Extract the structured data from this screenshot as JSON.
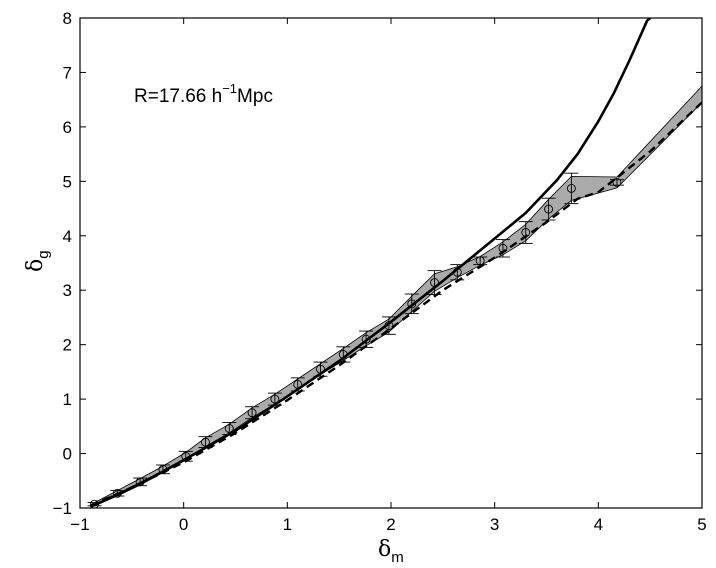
{
  "chart_data": {
    "type": "line",
    "title": "",
    "xlabel": {
      "symbol": "δ",
      "sub": "m"
    },
    "ylabel": {
      "symbol": "δ",
      "sub": "g"
    },
    "xlim": [
      -1,
      5
    ],
    "ylim": [
      -1,
      8
    ],
    "xticks": [
      "-1",
      "0",
      "1",
      "2",
      "3",
      "4",
      "5"
    ],
    "yticks": [
      "-1",
      "0",
      "1",
      "2",
      "3",
      "4",
      "5",
      "6",
      "7",
      "8"
    ],
    "grid": false,
    "annotation": {
      "prefix": "R=17.66 h",
      "sup": "−1",
      "suffix": "Mpc"
    },
    "series": [
      {
        "style": "solid",
        "x": [
          -0.9,
          -0.6,
          -0.3,
          0.0,
          0.5,
          1.0,
          1.5,
          2.0,
          2.5,
          3.0,
          3.3,
          3.6,
          3.8,
          4.0,
          4.15,
          4.3,
          4.4,
          4.47,
          4.5
        ],
        "y": [
          -0.98,
          -0.72,
          -0.43,
          -0.12,
          0.42,
          1.05,
          1.7,
          2.42,
          3.17,
          3.95,
          4.42,
          5.02,
          5.5,
          6.1,
          6.62,
          7.22,
          7.65,
          7.95,
          8.0
        ]
      },
      {
        "style": "dashed",
        "x": [
          -0.9,
          -0.6,
          -0.3,
          0.0,
          0.5,
          1.0,
          1.5,
          2.0,
          2.5,
          3.0,
          3.5,
          3.8,
          4.0,
          4.2,
          4.5,
          5.0
        ],
        "y": [
          -0.95,
          -0.71,
          -0.44,
          -0.16,
          0.38,
          0.98,
          1.62,
          2.3,
          3.0,
          3.6,
          4.25,
          4.68,
          4.8,
          5.1,
          5.55,
          6.45
        ]
      },
      {
        "style": "markers-errorbars-band",
        "x": [
          -0.86,
          -0.64,
          -0.42,
          -0.2,
          0.02,
          0.21,
          0.44,
          0.66,
          0.88,
          1.1,
          1.32,
          1.54,
          1.76,
          1.98,
          2.2,
          2.42,
          2.64,
          2.86,
          3.08,
          3.3,
          3.52,
          3.74,
          4.18,
          5.0
        ],
        "y": [
          -0.93,
          -0.73,
          -0.52,
          -0.29,
          -0.05,
          0.21,
          0.46,
          0.75,
          1.0,
          1.27,
          1.55,
          1.82,
          2.1,
          2.35,
          2.75,
          3.14,
          3.33,
          3.54,
          3.77,
          4.06,
          4.49,
          4.87,
          4.98,
          6.6
        ],
        "err": [
          0.03,
          0.05,
          0.07,
          0.08,
          0.09,
          0.1,
          0.11,
          0.11,
          0.11,
          0.12,
          0.13,
          0.14,
          0.15,
          0.16,
          0.18,
          0.22,
          0.14,
          0.07,
          0.16,
          0.2,
          0.2,
          0.28,
          0.05,
          0.0
        ],
        "band": [
          0.03,
          0.05,
          0.06,
          0.06,
          0.07,
          0.08,
          0.08,
          0.09,
          0.09,
          0.1,
          0.1,
          0.11,
          0.12,
          0.12,
          0.14,
          0.16,
          0.1,
          0.08,
          0.12,
          0.15,
          0.18,
          0.22,
          0.1,
          0.15
        ]
      }
    ]
  }
}
